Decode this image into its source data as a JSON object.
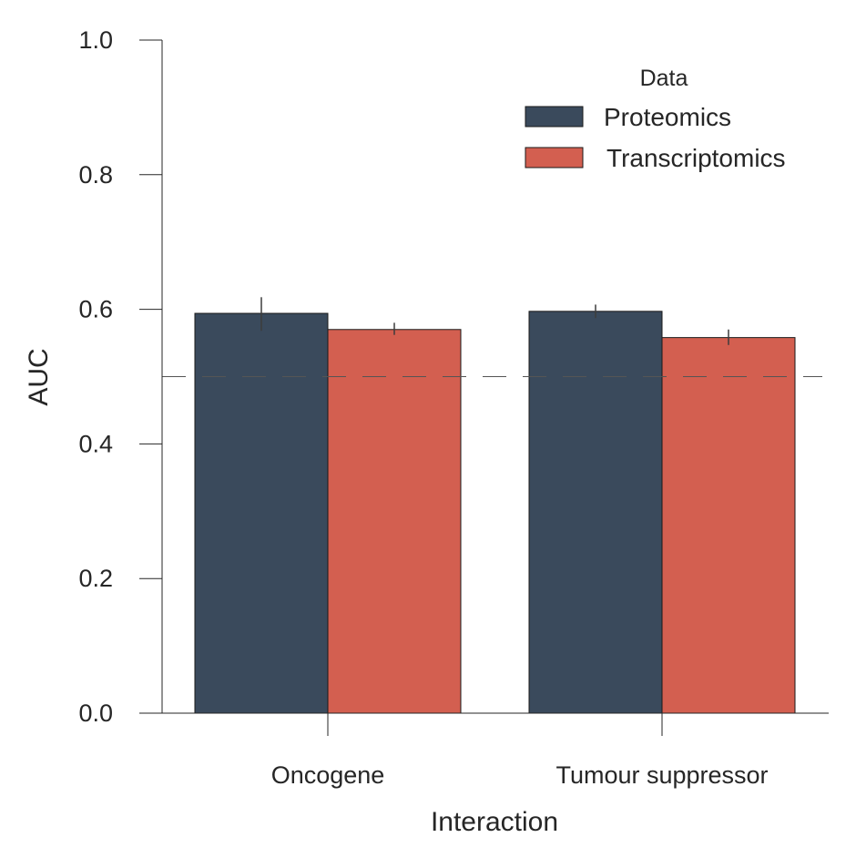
{
  "chart_data": {
    "type": "bar",
    "xlabel": "Interaction",
    "ylabel": "AUC",
    "categories": [
      "Oncogene",
      "Tumour suppressor"
    ],
    "series": [
      {
        "name": "Proteomics",
        "color": "#3a4a5c",
        "values": [
          0.594,
          0.597
        ],
        "error": [
          [
            0.568,
            0.618
          ],
          [
            0.587,
            0.607
          ]
        ]
      },
      {
        "name": "Transcriptomics",
        "color": "#d35f50",
        "values": [
          0.57,
          0.558
        ],
        "error": [
          [
            0.562,
            0.58
          ],
          [
            0.547,
            0.57
          ]
        ]
      }
    ],
    "ylim": [
      0.0,
      1.0
    ],
    "yticks": [
      "0.0",
      "0.2",
      "0.4",
      "0.6",
      "0.8",
      "1.0"
    ],
    "reference_line": {
      "y": 0.5,
      "style": "dashed"
    },
    "legend": {
      "title": "Data",
      "placement": "top-right"
    },
    "grid": false
  }
}
